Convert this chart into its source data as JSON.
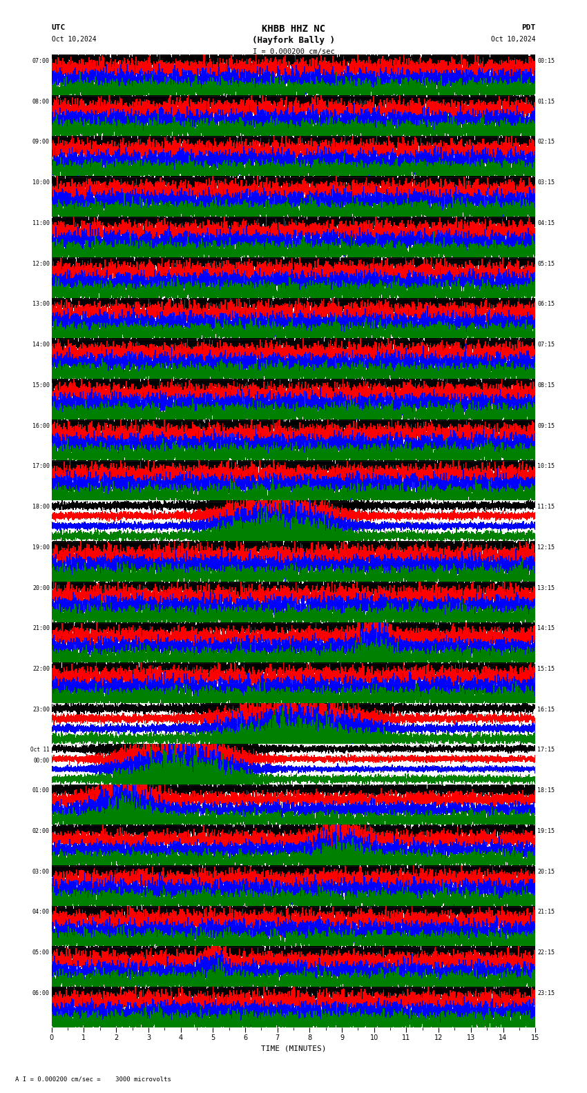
{
  "title_line1": "KHBB HHZ NC",
  "title_line2": "(Hayfork Bally )",
  "scale_label": "I = 0.000200 cm/sec",
  "utc_label": "UTC",
  "date_left": "Oct 10,2024",
  "date_right": "Oct 10,2024",
  "pdt_label": "PDT",
  "xlabel": "TIME (MINUTES)",
  "footer": "A I = 0.000200 cm/sec =    3000 microvolts",
  "bg_color": "#ffffff",
  "trace_colors": [
    "#000000",
    "#ff0000",
    "#0000ff",
    "#008000"
  ],
  "n_rows": 24,
  "minutes_per_row": 15,
  "left_labels_utc": [
    "07:00",
    "08:00",
    "09:00",
    "10:00",
    "11:00",
    "12:00",
    "13:00",
    "14:00",
    "15:00",
    "16:00",
    "17:00",
    "18:00",
    "19:00",
    "20:00",
    "21:00",
    "22:00",
    "23:00",
    "Oct 11\n00:00",
    "01:00",
    "02:00",
    "03:00",
    "04:00",
    "05:00",
    "06:00"
  ],
  "right_labels_pdt": [
    "00:15",
    "01:15",
    "02:15",
    "03:15",
    "04:15",
    "05:15",
    "06:15",
    "07:15",
    "08:15",
    "09:15",
    "10:15",
    "11:15",
    "12:15",
    "13:15",
    "14:15",
    "15:15",
    "16:15",
    "17:15",
    "18:15",
    "19:15",
    "20:15",
    "21:15",
    "22:15",
    "23:15"
  ],
  "fig_width": 8.5,
  "fig_height": 15.84,
  "dpi": 100
}
